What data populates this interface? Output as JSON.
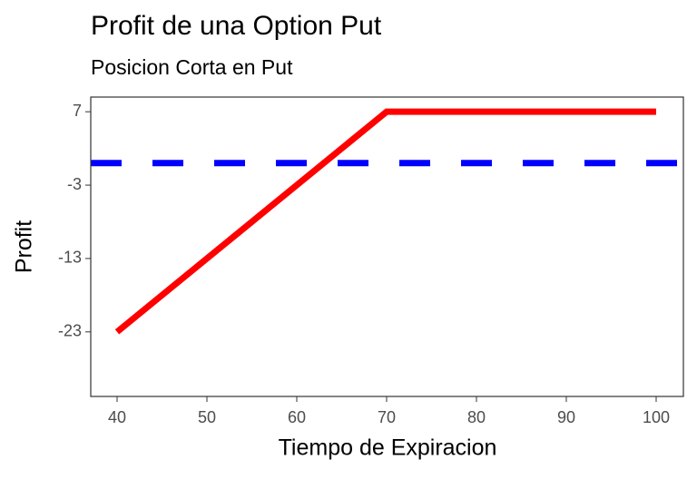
{
  "chart_data": {
    "type": "line",
    "title": "Profit de una Option Put",
    "subtitle": "Posicion Corta en Put",
    "x_label": "Tiempo de Expiracion",
    "y_label": "Profit",
    "x": [
      40,
      70,
      100
    ],
    "series": [
      {
        "color": "#ff0000",
        "values": [
          -23,
          7,
          7
        ]
      }
    ],
    "hline": {
      "value": 0,
      "color": "#0000ff",
      "dashed": true
    },
    "xlim": [
      37.07,
      103.03
    ],
    "xticks": [
      40,
      50,
      60,
      70,
      80,
      90,
      100
    ],
    "ylim": [
      -31.8,
      9
    ],
    "yticks": [
      7,
      -3,
      -13,
      -23
    ],
    "grid": false
  }
}
